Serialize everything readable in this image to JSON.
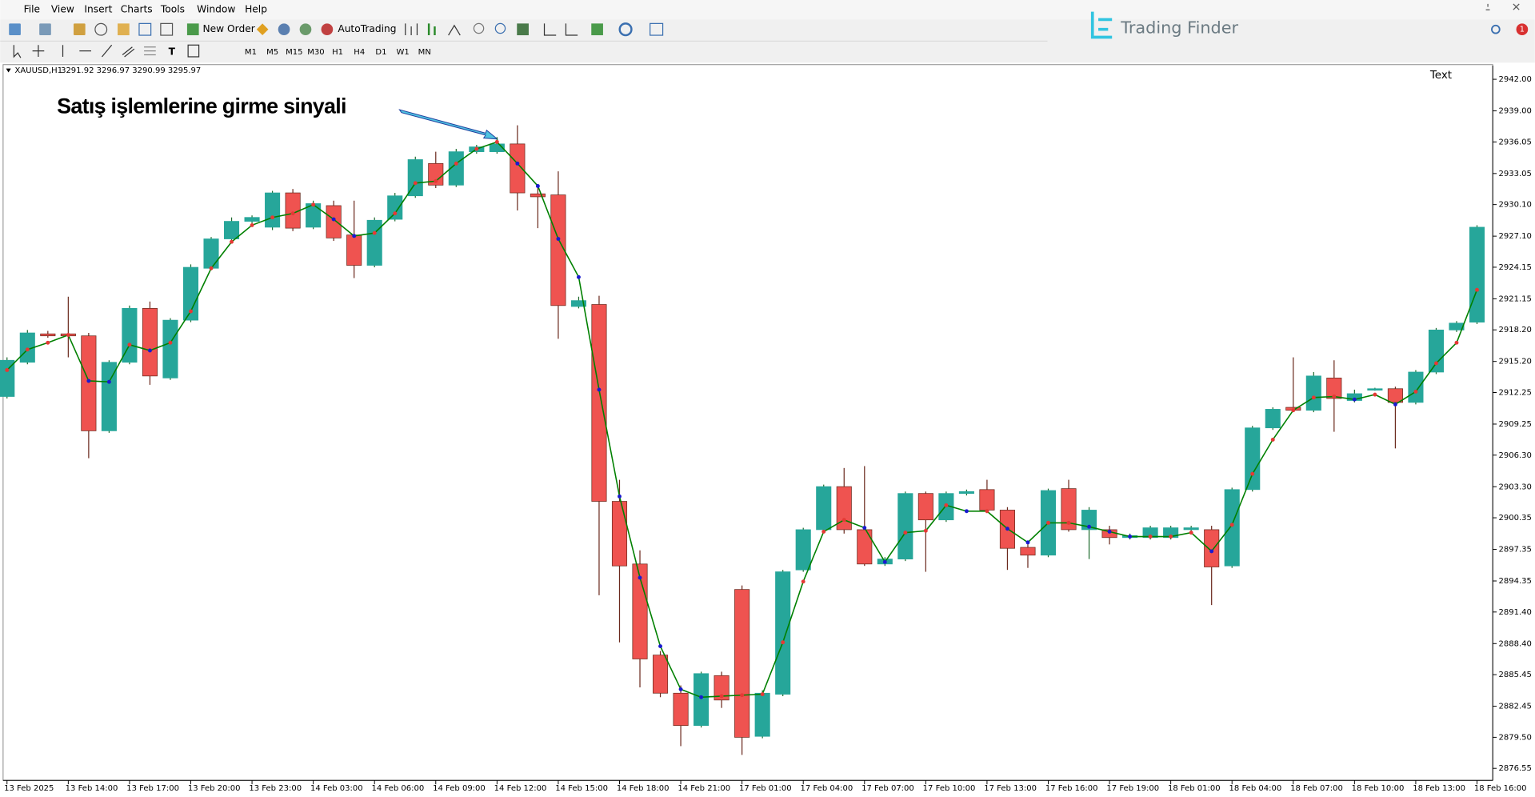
{
  "menu": [
    "File",
    "View",
    "Insert",
    "Charts",
    "Tools",
    "Window",
    "Help"
  ],
  "toolbar": {
    "new_order": "New Order",
    "auto_trading": "AutoTrading",
    "timeframes": [
      "M1",
      "M5",
      "M15",
      "M30",
      "H1",
      "H4",
      "D1",
      "W1",
      "MN"
    ],
    "text_tool": "T"
  },
  "brand": "Trading Finder",
  "notifications": "1",
  "chart_data": {
    "type": "candlestick",
    "symbol": "XAUUSD,H1",
    "ohlc": "3291.92 3296.97 3290.99 3295.97",
    "corner_label": "Text",
    "annotation": "Satış işlemlerine girme sinyali",
    "categories": [
      "13 Feb 2025",
      null,
      null,
      "13 Feb 14:00",
      null,
      null,
      "13 Feb 17:00",
      null,
      null,
      "13 Feb 20:00",
      null,
      null,
      "13 Feb 23:00",
      null,
      null,
      "14 Feb 03:00",
      null,
      null,
      "14 Feb 06:00",
      null,
      null,
      "14 Feb 09:00",
      null,
      null,
      "14 Feb 12:00",
      null,
      null,
      "14 Feb 15:00",
      null,
      null,
      "14 Feb 18:00",
      null,
      null,
      "14 Feb 21:00",
      null,
      null,
      "17 Feb 01:00",
      null,
      null,
      "17 Feb 04:00",
      null,
      null,
      "17 Feb 07:00",
      null,
      null,
      "17 Feb 10:00",
      null,
      null,
      "17 Feb 13:00",
      null,
      null,
      "17 Feb 16:00",
      null,
      null,
      "17 Feb 19:00",
      null,
      null,
      "18 Feb 01:00",
      null,
      null,
      "18 Feb 04:00",
      null,
      null,
      "18 Feb 07:00",
      null,
      null,
      "18 Feb 10:00",
      null,
      null,
      "18 Feb 13:00",
      null,
      null,
      "18 Feb 16:00"
    ],
    "open": [
      2911.87,
      2915.12,
      2917.82,
      2917.82,
      2917.63,
      2908.61,
      2915.12,
      2920.24,
      2913.63,
      2919.12,
      2924.05,
      2926.84,
      2928.51,
      2927.95,
      2931.21,
      2927.95,
      2930.0,
      2927.21,
      2924.33,
      2928.7,
      2930.93,
      2934.0,
      2931.95,
      2935.12,
      2935.12,
      2935.86,
      2931.12,
      2931.02,
      2920.42,
      2920.61,
      2901.91,
      2895.96,
      2887.31,
      2883.69,
      2880.62,
      2885.36,
      2893.54,
      2879.59,
      2883.59,
      2895.4,
      2899.22,
      2903.31,
      2899.22,
      2895.96,
      2896.43,
      2902.66,
      2900.15,
      2902.66,
      2903.03,
      2901.08,
      2897.54,
      2896.8,
      2903.12,
      2899.22,
      2899.22,
      2898.47,
      2898.47,
      2898.47,
      2899.22,
      2899.22,
      2895.78,
      2903.03,
      2908.89,
      2910.84,
      2910.56,
      2913.63,
      2911.49,
      2912.52,
      2912.61,
      2911.31,
      2914.19,
      2918.19,
      2918.93
    ],
    "high": [
      2915.59,
      2918.19,
      2918.1,
      2921.35,
      2917.91,
      2915.31,
      2920.51,
      2920.89,
      2919.31,
      2924.42,
      2927.02,
      2928.88,
      2929.07,
      2931.4,
      2931.58,
      2930.47,
      2930.47,
      2930.47,
      2928.88,
      2931.21,
      2934.65,
      2935.12,
      2935.39,
      2935.77,
      2936.51,
      2937.63,
      2932.05,
      2933.26,
      2921.35,
      2921.44,
      2903.96,
      2897.26,
      2887.69,
      2884.43,
      2885.73,
      2885.73,
      2893.92,
      2883.97,
      2895.4,
      2899.4,
      2903.5,
      2905.08,
      2905.26,
      2896.61,
      2902.84,
      2902.84,
      2902.84,
      2903.03,
      2903.96,
      2901.36,
      2897.92,
      2903.12,
      2903.96,
      2901.36,
      2899.59,
      2898.85,
      2899.59,
      2899.59,
      2899.59,
      2899.59,
      2903.21,
      2909.08,
      2910.84,
      2915.59,
      2914.19,
      2915.31,
      2912.52,
      2912.7,
      2912.8,
      2914.38,
      2918.38,
      2919.03,
      2928.14
    ],
    "low": [
      2911.68,
      2914.93,
      2917.45,
      2915.59,
      2906.01,
      2908.42,
      2914.93,
      2912.98,
      2913.45,
      2918.93,
      2923.86,
      2926.65,
      2928.33,
      2927.68,
      2927.58,
      2927.77,
      2926.65,
      2923.12,
      2924.14,
      2928.51,
      2930.74,
      2931.67,
      2931.77,
      2934.93,
      2934.93,
      2929.54,
      2927.86,
      2917.35,
      2920.24,
      2892.99,
      2888.52,
      2884.24,
      2883.31,
      2878.66,
      2880.43,
      2882.29,
      2877.83,
      2879.41,
      2883.41,
      2895.22,
      2899.03,
      2898.85,
      2895.78,
      2895.78,
      2896.24,
      2895.22,
      2899.96,
      2902.47,
      2900.8,
      2895.4,
      2895.59,
      2896.61,
      2899.03,
      2896.43,
      2897.82,
      2898.29,
      2898.29,
      2898.29,
      2899.03,
      2892.06,
      2895.59,
      2902.84,
      2908.7,
      2910.38,
      2910.38,
      2908.52,
      2911.31,
      2912.42,
      2906.94,
      2911.12,
      2914.0,
      2918.0,
      2918.75
    ],
    "close": [
      2915.31,
      2917.91,
      2917.63,
      2917.63,
      2908.61,
      2915.12,
      2920.24,
      2913.82,
      2919.12,
      2924.14,
      2926.84,
      2928.51,
      2928.88,
      2931.21,
      2927.86,
      2930.19,
      2926.93,
      2924.33,
      2928.61,
      2930.93,
      2934.37,
      2931.95,
      2935.12,
      2935.58,
      2935.86,
      2931.21,
      2930.84,
      2920.51,
      2920.98,
      2901.91,
      2895.78,
      2886.94,
      2883.69,
      2880.62,
      2885.55,
      2883.04,
      2879.5,
      2883.69,
      2895.22,
      2899.22,
      2903.31,
      2899.22,
      2895.96,
      2896.43,
      2902.66,
      2900.15,
      2902.66,
      2902.84,
      2901.08,
      2897.45,
      2896.8,
      2902.94,
      2899.22,
      2901.08,
      2898.47,
      2898.66,
      2899.4,
      2899.4,
      2899.4,
      2895.68,
      2903.03,
      2908.89,
      2910.66,
      2910.56,
      2913.82,
      2911.68,
      2912.14,
      2912.61,
      2911.31,
      2914.19,
      2918.19,
      2918.84,
      2927.95
    ],
    "up_color": "#26a69a",
    "down_color": "#ef5350",
    "up_wick": "#1e6b2e",
    "down_wick": "#6b2a1e",
    "line": {
      "color": "#008000",
      "up_color": "#e53935",
      "down_color": "#1a1ad0",
      "values": [
        2914.38,
        2916.33,
        2916.98,
        2917.72,
        2913.35,
        2913.26,
        2916.79,
        2916.24,
        2916.98,
        2919.96,
        2924.05,
        2926.56,
        2928.14,
        2928.88,
        2929.26,
        2930.09,
        2928.7,
        2927.12,
        2927.4,
        2929.26,
        2932.14,
        2932.33,
        2934.0,
        2935.39,
        2936.05,
        2934.0,
        2931.86,
        2926.84,
        2923.21,
        2912.52,
        2902.38,
        2894.66,
        2888.15,
        2884.06,
        2883.31,
        2883.41,
        2883.5,
        2883.59,
        2888.52,
        2894.29,
        2899.03,
        2900.15,
        2899.4,
        2896.15,
        2898.94,
        2899.12,
        2901.54,
        2900.98,
        2900.98,
        2899.31,
        2898.01,
        2899.87,
        2899.87,
        2899.5,
        2899.03,
        2898.57,
        2898.57,
        2898.57,
        2898.94,
        2897.17,
        2899.68,
        2904.52,
        2907.77,
        2910.56,
        2911.77,
        2911.87,
        2911.59,
        2912.05,
        2911.12,
        2912.33,
        2915.03,
        2916.98,
        2922.0
      ]
    },
    "ylim": [
      2875.41,
      2943.3
    ],
    "yticks": [
      {
        "value": 2942.0,
        "label": "2942.00"
      },
      {
        "value": 2939.0,
        "label": "2939.00"
      },
      2936.05,
      2933.05,
      {
        "value": 2930.1,
        "label": "2930.10"
      },
      {
        "value": 2927.1,
        "label": "2927.10"
      },
      2924.15,
      2921.15,
      {
        "value": 2918.2,
        "label": "2918.20"
      },
      {
        "value": 2915.2,
        "label": "2915.20"
      },
      2912.25,
      2909.25,
      {
        "value": 2906.3,
        "label": "2906.30"
      },
      {
        "value": 2903.3,
        "label": "2903.30"
      },
      2900.35,
      2897.35,
      2894.35,
      {
        "value": 2891.4,
        "label": "2891.40"
      },
      {
        "value": 2888.4,
        "label": "2888.40"
      },
      2885.45,
      2882.45,
      {
        "value": 2879.5,
        "label": "2879.50"
      },
      2876.55
    ],
    "grid": false
  }
}
